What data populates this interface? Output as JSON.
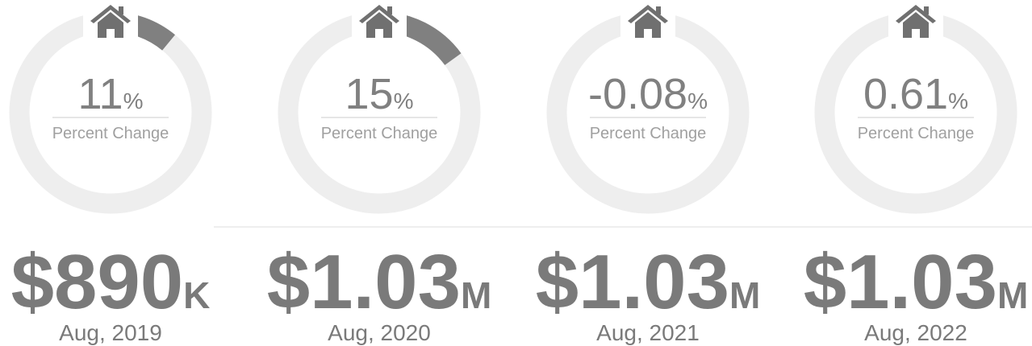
{
  "cards": [
    {
      "percent": 11,
      "percent_unit": "%",
      "label": "Percent Change",
      "price": "$890",
      "price_unit": "K",
      "date": "Aug, 2019"
    },
    {
      "percent": 15,
      "percent_unit": "%",
      "label": "Percent Change",
      "price": "$1.03",
      "price_unit": "M",
      "date": "Aug, 2020"
    },
    {
      "percent": -0.08,
      "percent_unit": "%",
      "label": "Percent Change",
      "price": "$1.03",
      "price_unit": "M",
      "date": "Aug, 2021"
    },
    {
      "percent": 0.61,
      "percent_unit": "%",
      "label": "Percent Change",
      "price": "$1.03",
      "price_unit": "M",
      "date": "Aug, 2022"
    }
  ]
}
